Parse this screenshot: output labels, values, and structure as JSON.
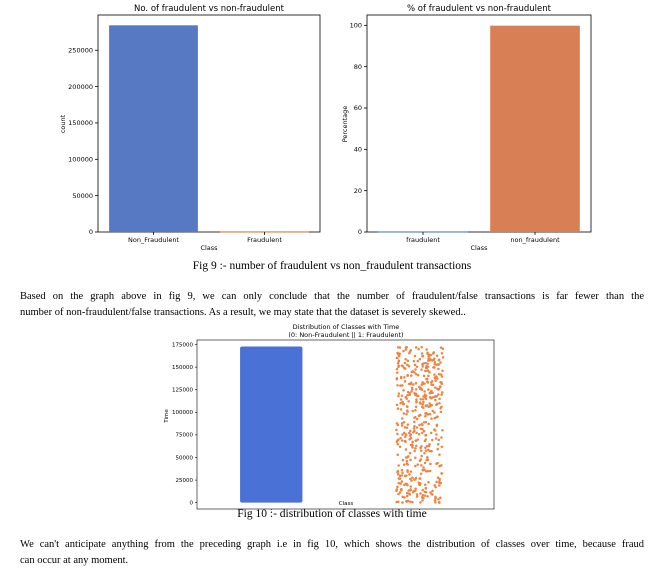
{
  "chart_data": [
    {
      "type": "bar",
      "title": "No. of fraudulent vs non-fraudulent",
      "xlabel": "Class",
      "ylabel": "count",
      "categories": [
        "Non_Fraudulent",
        "Fraudulent"
      ],
      "values": [
        284315,
        492
      ],
      "colors": [
        "#5779c3",
        "#d97f55"
      ],
      "ylim": [
        0,
        298500
      ],
      "yticks": [
        0,
        50000,
        100000,
        150000,
        200000,
        250000
      ],
      "grid": false
    },
    {
      "type": "bar",
      "title": "% of fraudulent vs non-fraudulent",
      "xlabel": "Class",
      "ylabel": "Percentage",
      "categories": [
        "fraudulent",
        "non_fraudulent"
      ],
      "values": [
        0.17,
        99.83
      ],
      "colors": [
        "#5779c3",
        "#d97f55"
      ],
      "ylim": [
        0,
        105
      ],
      "yticks": [
        0,
        20,
        40,
        60,
        80,
        100
      ],
      "grid": false
    },
    {
      "type": "scatter",
      "title": "Distribution of Classes with Time",
      "subtitle": "(0: Non-Fraudulent || 1: Fraudulent)",
      "xlabel": "Class",
      "ylabel": "Time",
      "categories": [
        "Non_Fraudulent",
        "Fraudulent"
      ],
      "colors": [
        "#4a72d6",
        "#ee8342"
      ],
      "ylim": [
        -7000,
        180000
      ],
      "yticks": [
        0,
        25000,
        50000,
        75000,
        100000,
        125000,
        150000,
        175000
      ],
      "time_range": [
        0,
        172792
      ],
      "point_counts": [
        284315,
        492
      ],
      "grid": false
    }
  ],
  "captions": {
    "fig9": "Fig 9 :-  number of fraudulent vs non_fraudulent transactions",
    "fig10": "Fig 10 :- distribution of classes with time"
  },
  "paragraphs": {
    "p1_line1": "Based on the graph above in fig 9, we can only conclude that the number of fraudulent/false transactions is far fewer than the",
    "p1_line2": "number of non-fraudulent/false transactions. As a result, we may state that the dataset is severely skewed..",
    "p2_line1": "We can't anticipate anything from the preceding graph i.e in fig 10, which shows the distribution of classes over time, because fraud",
    "p2_line2": "can occur at any moment."
  }
}
